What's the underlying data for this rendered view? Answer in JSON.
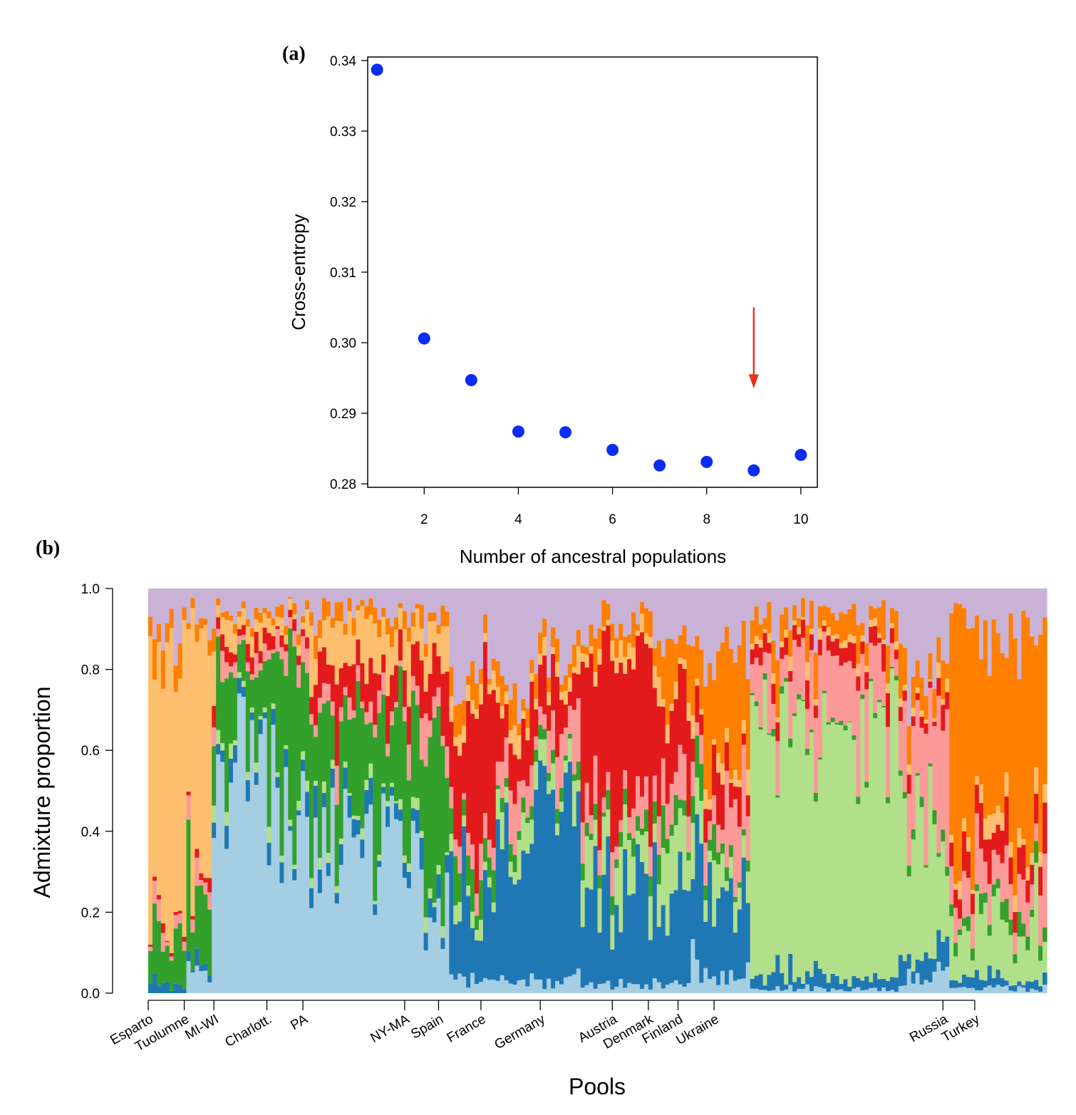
{
  "chart_data": [
    {
      "panel_label": "(a)",
      "type": "scatter",
      "xlabel": "Number of ancestral populations",
      "ylabel": "Cross-entropy",
      "xlim": [
        0.8,
        10.35
      ],
      "ylim": [
        0.2795,
        0.3405
      ],
      "x_ticks": [
        2,
        4,
        6,
        8,
        10
      ],
      "y_ticks": [
        0.28,
        0.29,
        0.3,
        0.31,
        0.32,
        0.33,
        0.34
      ],
      "y_tick_labels": [
        "0.28",
        "0.29",
        "0.30",
        "0.31",
        "0.32",
        "0.33",
        "0.34"
      ],
      "point_color": "#0a2cf5",
      "series": [
        {
          "x": [
            1,
            2,
            3,
            4,
            5,
            6,
            7,
            8,
            9,
            10
          ],
          "y": [
            0.3387,
            0.3006,
            0.2947,
            0.2874,
            0.2873,
            0.2848,
            0.2826,
            0.2831,
            0.2819,
            0.2841
          ]
        }
      ],
      "annotation": {
        "kind": "arrow",
        "x": 9,
        "y_from": 0.305,
        "y_to": 0.2935,
        "color": "#e8321e"
      },
      "grid": false,
      "box": true
    },
    {
      "panel_label": "(b)",
      "type": "bar",
      "stacked": true,
      "xlabel": "Pools",
      "ylabel": "Admixture proportion",
      "ylim": [
        0,
        1
      ],
      "y_ticks": [
        0.0,
        0.2,
        0.4,
        0.6,
        0.8,
        1.0
      ],
      "y_tick_labels": [
        "0.0",
        "0.2",
        "0.4",
        "0.6",
        "0.8",
        "1.0"
      ],
      "n_pools": 212,
      "component_colors": [
        "#a6cee3",
        "#1f78b4",
        "#b2df8a",
        "#33a02c",
        "#fb9a99",
        "#e31a1c",
        "#fdbf6f",
        "#ff7f00",
        "#cab2d6"
      ],
      "regions": [
        {
          "label": "Esparto",
          "start": 0,
          "count": 9,
          "tick": 0
        },
        {
          "label": "Tuolumne",
          "start": 9,
          "count": 6,
          "tick": 8.5
        },
        {
          "label": "MI-WI",
          "start": 15,
          "count": 15,
          "tick": 15.5
        },
        {
          "label": "Charlott.",
          "start": 30,
          "count": 7,
          "tick": 28
        },
        {
          "label": "PA",
          "start": 37,
          "count": 27,
          "tick": 36.5
        },
        {
          "label": "NY-MA",
          "start": 64,
          "count": 7,
          "tick": 60.5
        },
        {
          "label": "Spain",
          "start": 71,
          "count": 11,
          "tick": 68.5
        },
        {
          "label": "France",
          "start": 82,
          "count": 20,
          "tick": 78.5
        },
        {
          "label": "Germany",
          "start": 102,
          "count": 18,
          "tick": 92.5
        },
        {
          "label": "Austria",
          "start": 120,
          "count": 8,
          "tick": 109.5
        },
        {
          "label": "Denmark",
          "start": 128,
          "count": 8,
          "tick": 118
        },
        {
          "label": "Finland",
          "start": 136,
          "count": 6,
          "tick": 125
        },
        {
          "label": "Ukraine",
          "start": 142,
          "count": 37,
          "tick": 133.5
        },
        {
          "label": "Russia",
          "start": 179,
          "count": 10,
          "tick": 187.5
        },
        {
          "label": "Turkey",
          "start": 189,
          "count": 23,
          "tick": 195
        }
      ]
    }
  ]
}
